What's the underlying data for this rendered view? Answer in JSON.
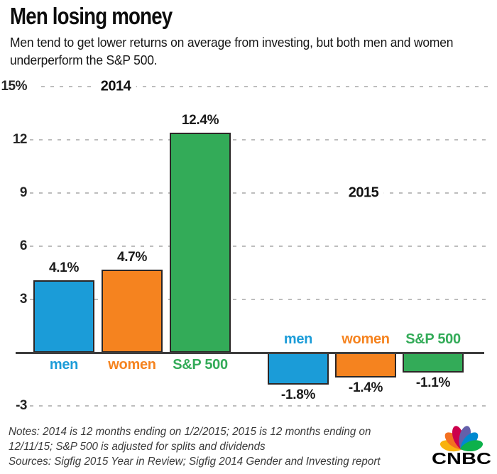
{
  "header": {
    "title": "Men losing money",
    "subtitle": "Men tend to get lower returns on average from investing, but both men and women underperform the S&P 500."
  },
  "chart_data": {
    "type": "bar",
    "unit": "percent",
    "categories": [
      "men",
      "women",
      "S&P 500"
    ],
    "groups": [
      {
        "label": "2014",
        "values": [
          4.1,
          4.7,
          12.4
        ],
        "value_labels": [
          "4.1%",
          "4.7%",
          "12.4%"
        ]
      },
      {
        "label": "2015",
        "values": [
          -1.8,
          -1.4,
          -1.1
        ],
        "value_labels": [
          "-1.8%",
          "-1.4%",
          "-1.1%"
        ]
      }
    ],
    "category_colors": [
      "#1b9cd8",
      "#f5831f",
      "#33ab58"
    ],
    "y_ticks": [
      {
        "value": 15,
        "label": "15%"
      },
      {
        "value": 12,
        "label": "12"
      },
      {
        "value": 9,
        "label": "9"
      },
      {
        "value": 6,
        "label": "6"
      },
      {
        "value": 3,
        "label": "3"
      },
      {
        "value": -3,
        "label": "-3"
      }
    ],
    "ylim": [
      -3.6,
      15.6
    ],
    "baseline": 0,
    "grid": "horizontal-dashed",
    "legend_position": "none"
  },
  "notes": {
    "lines": [
      "Notes: 2014 is 12 months ending on 1/2/2015; 2015 is 12 months ending on",
      "12/11/15; S&P 500 is adjusted for splits and dividends",
      "Sources: Sigfig 2015 Year in Review; Sigfig 2014 Gender and Investing report"
    ]
  },
  "footer": {
    "logo_text": "CNBC",
    "logo_feather_colors": [
      "#f9b20d",
      "#f37021",
      "#cc004c",
      "#6460aa",
      "#0089d0",
      "#0db14b"
    ]
  }
}
